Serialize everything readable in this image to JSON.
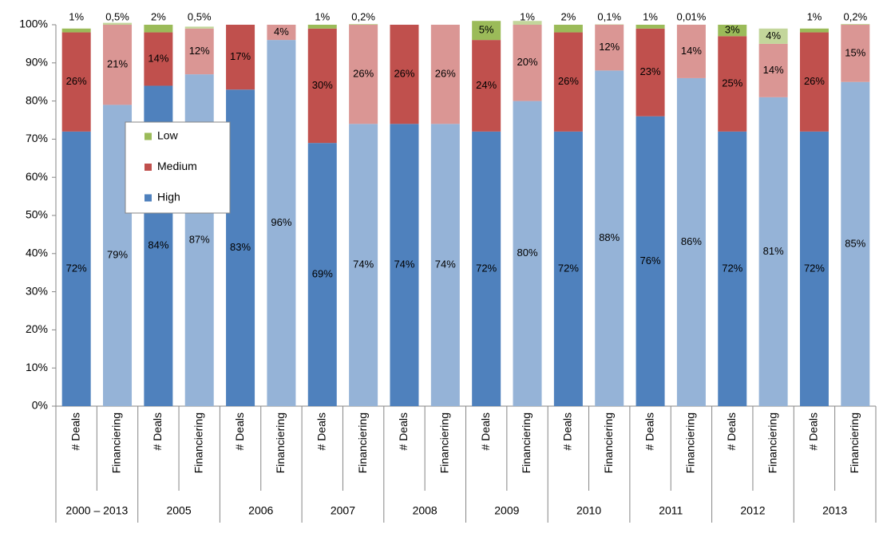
{
  "chart_data": {
    "type": "stacked-bar",
    "categories": [
      "# Deals",
      "Financiering",
      "# Deals",
      "Financiering",
      "# Deals",
      "Financiering",
      "# Deals",
      "Financiering",
      "# Deals",
      "Financiering",
      "# Deals",
      "Financiering",
      "# Deals",
      "Financiering",
      "# Deals",
      "Financiering",
      "# Deals",
      "Financiering",
      "# Deals",
      "Financiering"
    ],
    "group_labels": [
      "2000 – 2013",
      "2005",
      "2006",
      "2007",
      "2008",
      "2009",
      "2010",
      "2011",
      "2012",
      "2013"
    ],
    "series": [
      {
        "name": "High",
        "color": "#4f81bd",
        "colors": [
          "#4f81bd",
          "#95b3d7",
          "#4f81bd",
          "#95b3d7",
          "#4f81bd",
          "#95b3d7",
          "#4f81bd",
          "#95b3d7",
          "#4f81bd",
          "#95b3d7",
          "#4f81bd",
          "#95b3d7",
          "#4f81bd",
          "#95b3d7",
          "#4f81bd",
          "#95b3d7",
          "#4f81bd",
          "#95b3d7",
          "#4f81bd",
          "#95b3d7"
        ],
        "values": [
          72,
          79,
          84,
          87,
          83,
          96,
          69,
          74,
          74,
          74,
          72,
          80,
          72,
          88,
          76,
          86,
          72,
          81,
          72,
          85
        ],
        "value_labels": [
          "72%",
          "79%",
          "84%",
          "87%",
          "83%",
          "96%",
          "69%",
          "74%",
          "74%",
          "74%",
          "72%",
          "80%",
          "72%",
          "88%",
          "76%",
          "86%",
          "72%",
          "81%",
          "72%",
          "85%"
        ]
      },
      {
        "name": "Medium",
        "color": "#c0504d",
        "colors": [
          "#c0504d",
          "#da9694",
          "#c0504d",
          "#da9694",
          "#c0504d",
          "#da9694",
          "#c0504d",
          "#da9694",
          "#c0504d",
          "#da9694",
          "#c0504d",
          "#da9694",
          "#c0504d",
          "#da9694",
          "#c0504d",
          "#da9694",
          "#c0504d",
          "#da9694",
          "#c0504d",
          "#da9694"
        ],
        "values": [
          26,
          21,
          14,
          12,
          17,
          4,
          30,
          26,
          26,
          26,
          24,
          20,
          26,
          12,
          23,
          14,
          25,
          14,
          26,
          15
        ],
        "value_labels": [
          "26%",
          "21%",
          "14%",
          "12%",
          "17%",
          "4%",
          "30%",
          "26%",
          "26%",
          "26%",
          "24%",
          "20%",
          "26%",
          "12%",
          "23%",
          "14%",
          "25%",
          "14%",
          "26%",
          "15%"
        ]
      },
      {
        "name": "Low",
        "color": "#9bbb59",
        "colors": [
          "#9bbb59",
          "#c3d69b",
          "#9bbb59",
          "#c3d69b",
          "#9bbb59",
          "#c3d69b",
          "#9bbb59",
          "#c3d69b",
          "#9bbb59",
          "#c3d69b",
          "#9bbb59",
          "#c3d69b",
          "#9bbb59",
          "#c3d69b",
          "#9bbb59",
          "#c3d69b",
          "#9bbb59",
          "#c3d69b",
          "#9bbb59",
          "#c3d69b"
        ],
        "values": [
          1,
          0.5,
          2,
          0.5,
          null,
          null,
          1,
          0.2,
          null,
          null,
          5,
          1,
          2,
          0.1,
          1,
          0.01,
          3,
          4,
          1,
          0.2
        ],
        "value_labels": [
          "1%",
          "0,5%",
          "2%",
          "0,5%",
          null,
          null,
          "1%",
          "0,2%",
          null,
          null,
          "5%",
          "1%",
          "2%",
          "0,1%",
          "1%",
          "0,01%",
          "3%",
          "4%",
          "1%",
          "0,2%"
        ]
      }
    ],
    "ylim": [
      0,
      100
    ],
    "yticks": [
      {
        "value": 0,
        "label": "0%"
      },
      {
        "value": 10,
        "label": "10%"
      },
      {
        "value": 20,
        "label": "20%"
      },
      {
        "value": 30,
        "label": "30%"
      },
      {
        "value": 40,
        "label": "40%"
      },
      {
        "value": 50,
        "label": "50%"
      },
      {
        "value": 60,
        "label": "60%"
      },
      {
        "value": 70,
        "label": "70%"
      },
      {
        "value": 80,
        "label": "80%"
      },
      {
        "value": 90,
        "label": "90%"
      },
      {
        "value": 100,
        "label": "100%"
      }
    ],
    "grid": false,
    "legend": "upper-left"
  }
}
